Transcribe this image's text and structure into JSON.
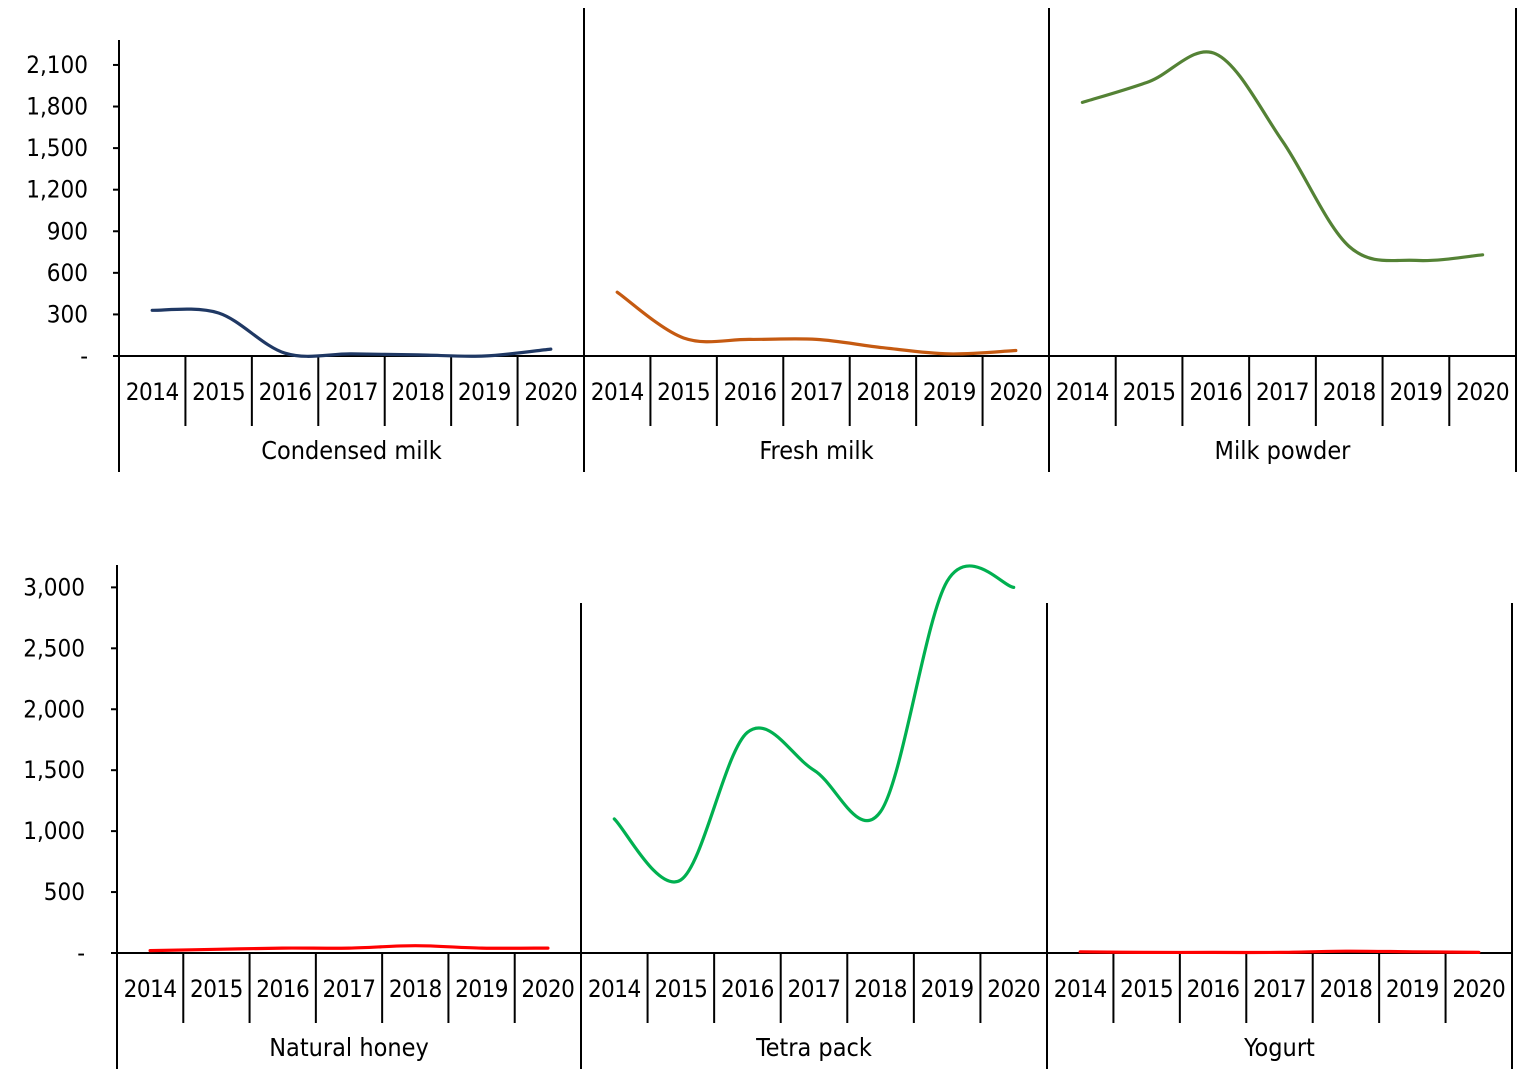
{
  "chart_data": [
    {
      "type": "line",
      "title": "",
      "xlabel": "",
      "ylabel": "",
      "ylim": [
        0,
        2280
      ],
      "yticks": [
        0,
        300,
        600,
        900,
        1200,
        1500,
        1800,
        2100
      ],
      "ytick_labels": [
        "-",
        "300",
        "600",
        "900",
        "1,200",
        "1,500",
        "1,800",
        "2,100"
      ],
      "x": [
        "2014",
        "2015",
        "2016",
        "2017",
        "2018",
        "2019",
        "2020"
      ],
      "grid": false,
      "legend": "none",
      "series": [
        {
          "name": "Condensed milk",
          "color": "#1f3864",
          "values": [
            330,
            310,
            20,
            15,
            8,
            0,
            50
          ]
        },
        {
          "name": "Fresh milk",
          "color": "#c55a11",
          "values": [
            460,
            130,
            120,
            120,
            60,
            15,
            40
          ]
        },
        {
          "name": "Milk powder",
          "color": "#548235",
          "values": [
            1830,
            1980,
            2180,
            1550,
            790,
            690,
            730
          ]
        }
      ]
    },
    {
      "type": "line",
      "title": "",
      "xlabel": "",
      "ylabel": "",
      "ylim": [
        0,
        3200
      ],
      "yticks": [
        0,
        500,
        1000,
        1500,
        2000,
        2500,
        3000
      ],
      "ytick_labels": [
        "-",
        "500",
        "1,000",
        "1,500",
        "2,000",
        "2,500",
        "3,000"
      ],
      "x": [
        "2014",
        "2015",
        "2016",
        "2017",
        "2018",
        "2019",
        "2020"
      ],
      "grid": false,
      "legend": "none",
      "series": [
        {
          "name": "Natural honey",
          "color": "#ff0000",
          "values": [
            20,
            30,
            40,
            40,
            60,
            40,
            40
          ]
        },
        {
          "name": "Tetra pack",
          "color": "#00b050",
          "values": [
            1100,
            600,
            1810,
            1500,
            1160,
            3050,
            3000
          ]
        },
        {
          "name": "Yogurt",
          "color": "#ff0000",
          "values": [
            10,
            5,
            5,
            5,
            15,
            10,
            5
          ]
        }
      ]
    }
  ]
}
